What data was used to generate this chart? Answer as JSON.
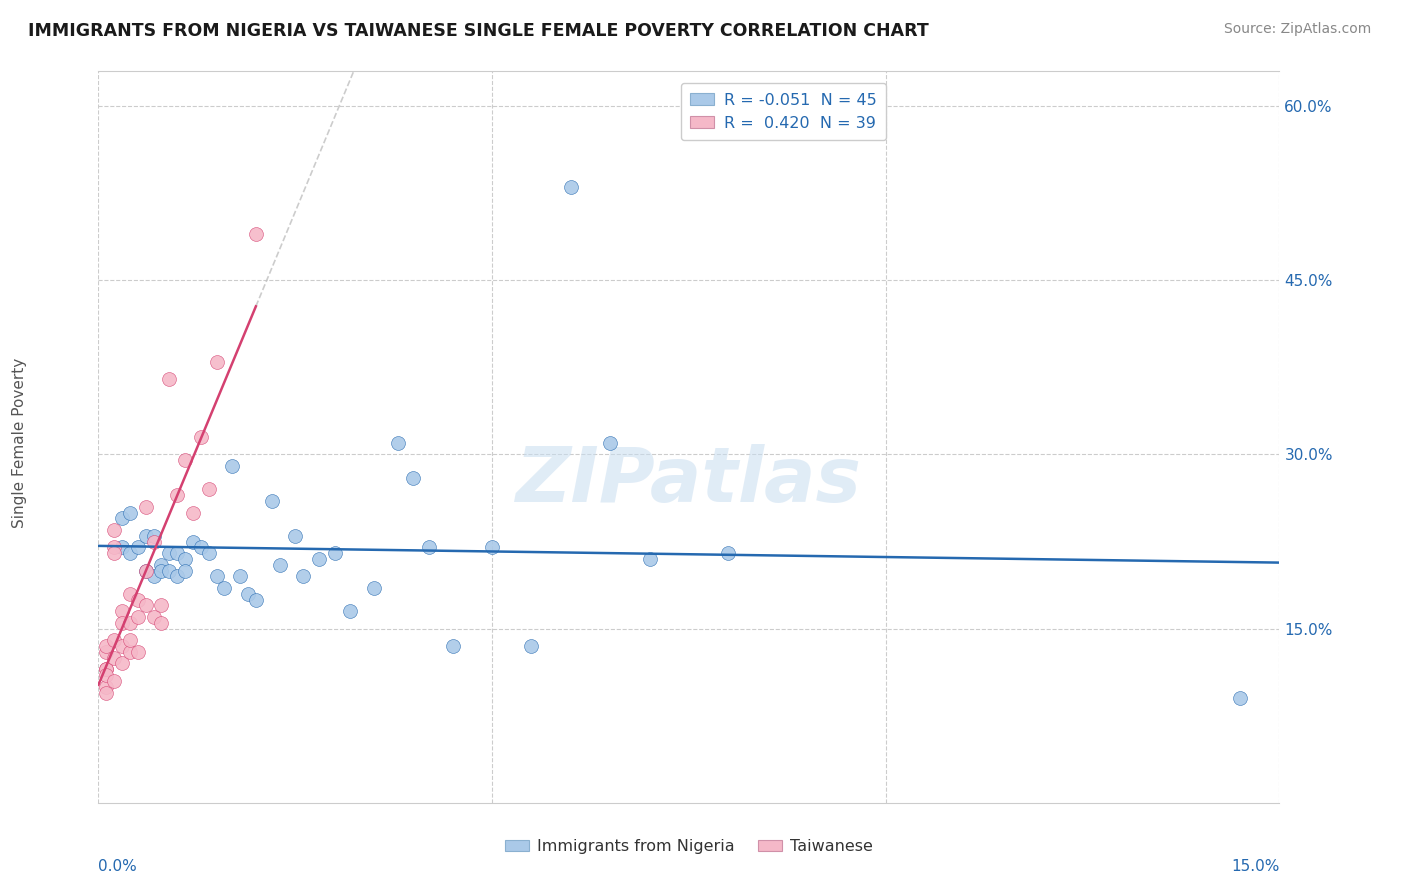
{
  "title": "IMMIGRANTS FROM NIGERIA VS TAIWANESE SINGLE FEMALE POVERTY CORRELATION CHART",
  "source": "Source: ZipAtlas.com",
  "ylabel": "Single Female Poverty",
  "xmin": 0.0,
  "xmax": 0.15,
  "ymin": 0.0,
  "ymax": 0.63,
  "legend1_label": "R = -0.051  N = 45",
  "legend2_label": "R =  0.420  N = 39",
  "legend_bottom1": "Immigrants from Nigeria",
  "legend_bottom2": "Taiwanese",
  "color_blue": "#aac9e8",
  "color_pink": "#f5b8c8",
  "trendline_blue": "#2569b0",
  "trendline_pink": "#d44070",
  "watermark": "ZIPatlas",
  "nigeria_x": [
    0.003,
    0.003,
    0.004,
    0.004,
    0.005,
    0.006,
    0.006,
    0.007,
    0.007,
    0.008,
    0.008,
    0.009,
    0.009,
    0.01,
    0.01,
    0.011,
    0.011,
    0.012,
    0.013,
    0.014,
    0.015,
    0.016,
    0.017,
    0.018,
    0.019,
    0.02,
    0.022,
    0.023,
    0.025,
    0.026,
    0.028,
    0.03,
    0.032,
    0.035,
    0.038,
    0.04,
    0.042,
    0.045,
    0.05,
    0.055,
    0.06,
    0.065,
    0.07,
    0.08,
    0.145
  ],
  "nigeria_y": [
    0.245,
    0.22,
    0.25,
    0.215,
    0.22,
    0.23,
    0.2,
    0.195,
    0.23,
    0.205,
    0.2,
    0.2,
    0.215,
    0.195,
    0.215,
    0.21,
    0.2,
    0.225,
    0.22,
    0.215,
    0.195,
    0.185,
    0.29,
    0.195,
    0.18,
    0.175,
    0.26,
    0.205,
    0.23,
    0.195,
    0.21,
    0.215,
    0.165,
    0.185,
    0.31,
    0.28,
    0.22,
    0.135,
    0.22,
    0.135,
    0.53,
    0.31,
    0.21,
    0.215,
    0.09
  ],
  "taiwanese_x": [
    0.001,
    0.001,
    0.001,
    0.001,
    0.001,
    0.001,
    0.001,
    0.002,
    0.002,
    0.002,
    0.002,
    0.002,
    0.002,
    0.003,
    0.003,
    0.003,
    0.003,
    0.004,
    0.004,
    0.004,
    0.004,
    0.005,
    0.005,
    0.005,
    0.006,
    0.006,
    0.006,
    0.007,
    0.007,
    0.008,
    0.008,
    0.009,
    0.01,
    0.011,
    0.012,
    0.013,
    0.014,
    0.015,
    0.02
  ],
  "taiwanese_y": [
    0.1,
    0.115,
    0.13,
    0.095,
    0.115,
    0.135,
    0.11,
    0.125,
    0.14,
    0.22,
    0.235,
    0.215,
    0.105,
    0.12,
    0.165,
    0.155,
    0.135,
    0.18,
    0.155,
    0.13,
    0.14,
    0.175,
    0.16,
    0.13,
    0.255,
    0.2,
    0.17,
    0.16,
    0.225,
    0.155,
    0.17,
    0.365,
    0.265,
    0.295,
    0.25,
    0.315,
    0.27,
    0.38,
    0.49
  ],
  "ytick_vals": [
    0.15,
    0.3,
    0.45,
    0.6
  ],
  "ytick_labels": [
    "15.0%",
    "30.0%",
    "45.0%",
    "60.0%"
  ],
  "xtick_vals": [
    0.0,
    0.05,
    0.1,
    0.15
  ],
  "xtick_labels": [
    "",
    "",
    "",
    ""
  ]
}
